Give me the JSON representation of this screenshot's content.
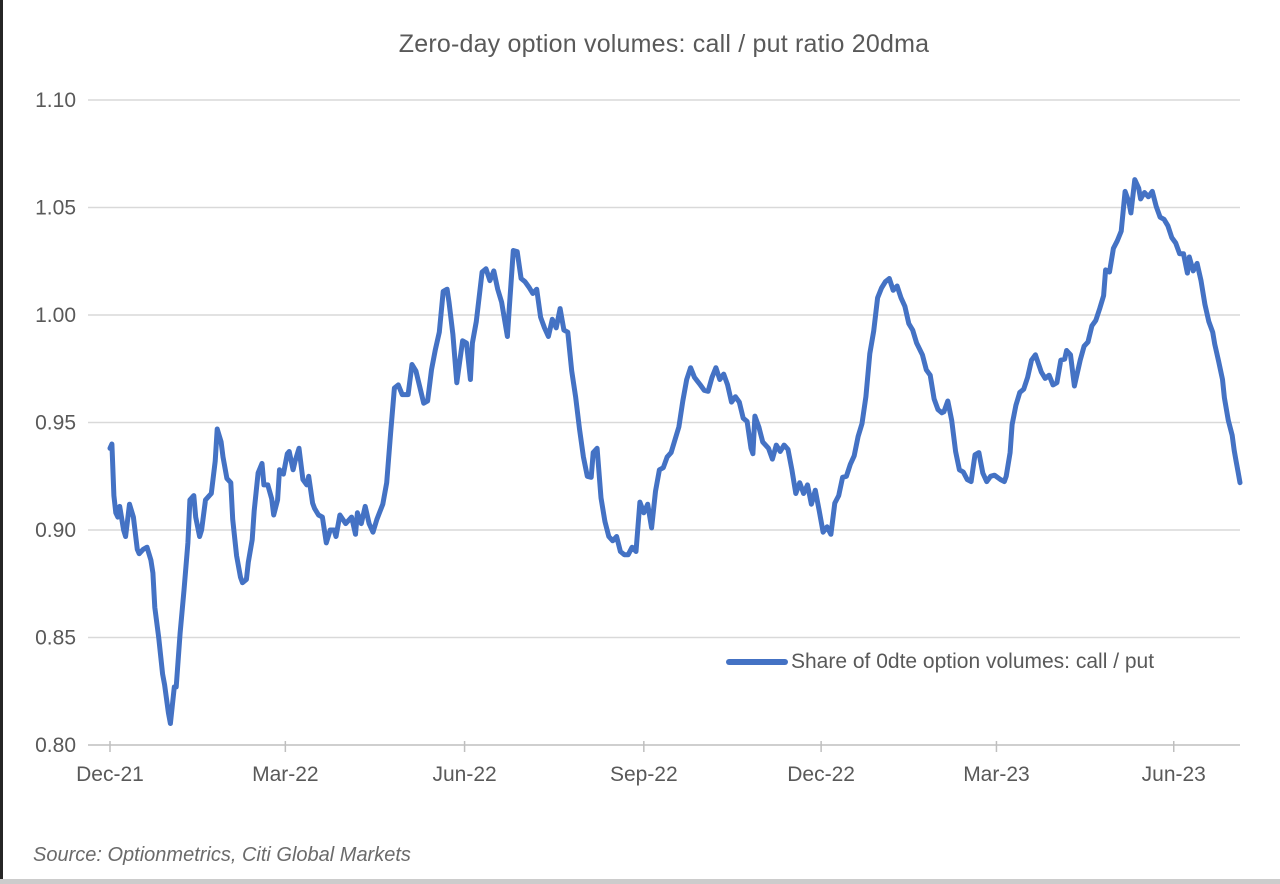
{
  "page": {
    "source_note": "Source: Optionmetrics, Citi Global Markets"
  },
  "chart_data": {
    "type": "line",
    "title": "Zero-day option volumes: call / put ratio 20dma",
    "xlabel": "",
    "ylabel": "",
    "ylim": [
      0.8,
      1.1
    ],
    "y_tick_step": 0.05,
    "y_tick_format_decimals": 2,
    "grid": "horizontal-only",
    "legend_position": "inside-bottom-right",
    "x_unit": "days since 2021-12-01",
    "x_span_days": 580,
    "x_ticks": [
      {
        "label": "Dec-21",
        "day": 0
      },
      {
        "label": "Mar-22",
        "day": 90
      },
      {
        "label": "Jun-22",
        "day": 182
      },
      {
        "label": "Sep-22",
        "day": 274
      },
      {
        "label": "Dec-22",
        "day": 365
      },
      {
        "label": "Mar-23",
        "day": 455
      },
      {
        "label": "Jun-23",
        "day": 546
      }
    ],
    "colors": {
      "line": "#4472C4",
      "grid": "#D9D9D9",
      "axis": "#BFBFBF",
      "text": "#595959"
    },
    "series": [
      {
        "name": "Share of 0dte option volumes: call / put",
        "color": "#4472C4",
        "points": [
          [
            0,
            0.938
          ],
          [
            1,
            0.94
          ],
          [
            2,
            0.916
          ],
          [
            3,
            0.908
          ],
          [
            4,
            0.906
          ],
          [
            5,
            0.911
          ],
          [
            7,
            0.9
          ],
          [
            8,
            0.897
          ],
          [
            10,
            0.912
          ],
          [
            12,
            0.906
          ],
          [
            14,
            0.891
          ],
          [
            15,
            0.889
          ],
          [
            17,
            0.891
          ],
          [
            19,
            0.892
          ],
          [
            21,
            0.886
          ],
          [
            22,
            0.88
          ],
          [
            23,
            0.864
          ],
          [
            25,
            0.85
          ],
          [
            27,
            0.833
          ],
          [
            28,
            0.828
          ],
          [
            30,
            0.815
          ],
          [
            31,
            0.81
          ],
          [
            33,
            0.827
          ],
          [
            34,
            0.827
          ],
          [
            36,
            0.852
          ],
          [
            38,
            0.872
          ],
          [
            40,
            0.894
          ],
          [
            41,
            0.914
          ],
          [
            43,
            0.916
          ],
          [
            44,
            0.906
          ],
          [
            46,
            0.897
          ],
          [
            47,
            0.9
          ],
          [
            49,
            0.914
          ],
          [
            51,
            0.916
          ],
          [
            52,
            0.917
          ],
          [
            54,
            0.932
          ],
          [
            55,
            0.947
          ],
          [
            57,
            0.941
          ],
          [
            58,
            0.934
          ],
          [
            60,
            0.924
          ],
          [
            62,
            0.922
          ],
          [
            63,
            0.905
          ],
          [
            65,
            0.888
          ],
          [
            67,
            0.878
          ],
          [
            68,
            0.8755
          ],
          [
            70,
            0.877
          ],
          [
            71,
            0.885
          ],
          [
            73,
            0.8955
          ],
          [
            74,
            0.909
          ],
          [
            76,
            0.9265
          ],
          [
            78,
            0.931
          ],
          [
            79,
            0.921
          ],
          [
            81,
            0.921
          ],
          [
            83,
            0.9145
          ],
          [
            84,
            0.907
          ],
          [
            86,
            0.914
          ],
          [
            87,
            0.928
          ],
          [
            89,
            0.926
          ],
          [
            91,
            0.9355
          ],
          [
            92,
            0.9365
          ],
          [
            94,
            0.928
          ],
          [
            95,
            0.932
          ],
          [
            97,
            0.938
          ],
          [
            99,
            0.9235
          ],
          [
            101,
            0.921
          ],
          [
            102,
            0.925
          ],
          [
            104,
            0.9125
          ],
          [
            105,
            0.91
          ],
          [
            107,
            0.907
          ],
          [
            109,
            0.906
          ],
          [
            111,
            0.894
          ],
          [
            113,
            0.9
          ],
          [
            115,
            0.9
          ],
          [
            116,
            0.897
          ],
          [
            118,
            0.907
          ],
          [
            121,
            0.903
          ],
          [
            123,
            0.905
          ],
          [
            124,
            0.906
          ],
          [
            126,
            0.898
          ],
          [
            127,
            0.908
          ],
          [
            129,
            0.903
          ],
          [
            131,
            0.911
          ],
          [
            133,
            0.903
          ],
          [
            135,
            0.899
          ],
          [
            137,
            0.905
          ],
          [
            140,
            0.912
          ],
          [
            142,
            0.922
          ],
          [
            144,
            0.945
          ],
          [
            146,
            0.966
          ],
          [
            148,
            0.9675
          ],
          [
            150,
            0.963
          ],
          [
            153,
            0.963
          ],
          [
            155,
            0.977
          ],
          [
            157,
            0.974
          ],
          [
            159,
            0.9665
          ],
          [
            161,
            0.959
          ],
          [
            163,
            0.96
          ],
          [
            165,
            0.9745
          ],
          [
            167,
            0.984
          ],
          [
            169,
            0.992
          ],
          [
            171,
            1.011
          ],
          [
            173,
            1.012
          ],
          [
            174,
            1.006
          ],
          [
            176,
            0.991
          ],
          [
            178,
            0.9685
          ],
          [
            179,
            0.975
          ],
          [
            181,
            0.988
          ],
          [
            183,
            0.987
          ],
          [
            185,
            0.97
          ],
          [
            186,
            0.987
          ],
          [
            188,
            0.997
          ],
          [
            191,
            1.02
          ],
          [
            193,
            1.0215
          ],
          [
            195,
            1.016
          ],
          [
            197,
            1.0205
          ],
          [
            199,
            1.012
          ],
          [
            201,
            1.006
          ],
          [
            204,
            0.99
          ],
          [
            205,
            1.004
          ],
          [
            207,
            1.03
          ],
          [
            209,
            1.0295
          ],
          [
            211,
            1.017
          ],
          [
            213,
            1.0155
          ],
          [
            215,
            1.013
          ],
          [
            217,
            1.01
          ],
          [
            219,
            1.012
          ],
          [
            221,
            0.999
          ],
          [
            223,
            0.994
          ],
          [
            225,
            0.99
          ],
          [
            227,
            0.998
          ],
          [
            229,
            0.994
          ],
          [
            231,
            1.003
          ],
          [
            233,
            0.993
          ],
          [
            235,
            0.992
          ],
          [
            237,
            0.974
          ],
          [
            239,
            0.962
          ],
          [
            241,
            0.947
          ],
          [
            243,
            0.934
          ],
          [
            245,
            0.925
          ],
          [
            247,
            0.9245
          ],
          [
            248,
            0.936
          ],
          [
            250,
            0.938
          ],
          [
            252,
            0.915
          ],
          [
            254,
            0.904
          ],
          [
            256,
            0.897
          ],
          [
            258,
            0.895
          ],
          [
            260,
            0.897
          ],
          [
            262,
            0.89
          ],
          [
            264,
            0.8885
          ],
          [
            266,
            0.8885
          ],
          [
            268,
            0.892
          ],
          [
            270,
            0.89
          ],
          [
            272,
            0.913
          ],
          [
            274,
            0.908
          ],
          [
            276,
            0.912
          ],
          [
            278,
            0.901
          ],
          [
            280,
            0.918
          ],
          [
            282,
            0.928
          ],
          [
            284,
            0.929
          ],
          [
            286,
            0.934
          ],
          [
            288,
            0.936
          ],
          [
            290,
            0.942
          ],
          [
            292,
            0.948
          ],
          [
            294,
            0.96
          ],
          [
            296,
            0.97
          ],
          [
            298,
            0.9755
          ],
          [
            300,
            0.971
          ],
          [
            303,
            0.9675
          ],
          [
            305,
            0.965
          ],
          [
            307,
            0.9645
          ],
          [
            309,
            0.971
          ],
          [
            311,
            0.9755
          ],
          [
            313,
            0.97
          ],
          [
            315,
            0.9725
          ],
          [
            317,
            0.9675
          ],
          [
            319,
            0.9595
          ],
          [
            321,
            0.962
          ],
          [
            323,
            0.9595
          ],
          [
            325,
            0.952
          ],
          [
            327,
            0.9505
          ],
          [
            329,
            0.938
          ],
          [
            330,
            0.9355
          ],
          [
            331,
            0.953
          ],
          [
            333,
            0.948
          ],
          [
            335,
            0.941
          ],
          [
            338,
            0.938
          ],
          [
            340,
            0.933
          ],
          [
            342,
            0.9395
          ],
          [
            344,
            0.9365
          ],
          [
            346,
            0.9395
          ],
          [
            348,
            0.9375
          ],
          [
            350,
            0.928
          ],
          [
            352,
            0.917
          ],
          [
            354,
            0.922
          ],
          [
            356,
            0.917
          ],
          [
            358,
            0.921
          ],
          [
            360,
            0.912
          ],
          [
            362,
            0.9185
          ],
          [
            364,
            0.909
          ],
          [
            366,
            0.899
          ],
          [
            368,
            0.9015
          ],
          [
            370,
            0.898
          ],
          [
            372,
            0.9125
          ],
          [
            374,
            0.916
          ],
          [
            376,
            0.9245
          ],
          [
            378,
            0.925
          ],
          [
            380,
            0.9305
          ],
          [
            382,
            0.9345
          ],
          [
            384,
            0.9435
          ],
          [
            386,
            0.9495
          ],
          [
            388,
            0.962
          ],
          [
            390,
            0.982
          ],
          [
            392,
            0.9925
          ],
          [
            394,
            1.008
          ],
          [
            396,
            1.0125
          ],
          [
            398,
            1.0155
          ],
          [
            400,
            1.017
          ],
          [
            402,
            1.0115
          ],
          [
            404,
            1.0135
          ],
          [
            406,
            1.008
          ],
          [
            408,
            1.004
          ],
          [
            410,
            0.996
          ],
          [
            412,
            0.993
          ],
          [
            414,
            0.987
          ],
          [
            417,
            0.9815
          ],
          [
            419,
            0.9745
          ],
          [
            421,
            0.972
          ],
          [
            423,
            0.961
          ],
          [
            425,
            0.956
          ],
          [
            427,
            0.9545
          ],
          [
            428,
            0.955
          ],
          [
            430,
            0.96
          ],
          [
            432,
            0.951
          ],
          [
            434,
            0.9365
          ],
          [
            436,
            0.928
          ],
          [
            438,
            0.927
          ],
          [
            440,
            0.9235
          ],
          [
            442,
            0.9225
          ],
          [
            444,
            0.935
          ],
          [
            446,
            0.936
          ],
          [
            448,
            0.9265
          ],
          [
            450,
            0.9225
          ],
          [
            452,
            0.925
          ],
          [
            454,
            0.9255
          ],
          [
            457,
            0.9235
          ],
          [
            459,
            0.9225
          ],
          [
            460,
            0.925
          ],
          [
            462,
            0.936
          ],
          [
            463,
            0.949
          ],
          [
            465,
            0.958
          ],
          [
            467,
            0.964
          ],
          [
            469,
            0.9655
          ],
          [
            471,
            0.971
          ],
          [
            473,
            0.979
          ],
          [
            475,
            0.9815
          ],
          [
            478,
            0.9735
          ],
          [
            480,
            0.9705
          ],
          [
            482,
            0.972
          ],
          [
            484,
            0.9675
          ],
          [
            486,
            0.9685
          ],
          [
            488,
            0.979
          ],
          [
            490,
            0.9795
          ],
          [
            491,
            0.9835
          ],
          [
            493,
            0.9815
          ],
          [
            495,
            0.967
          ],
          [
            498,
            0.979
          ],
          [
            500,
            0.9855
          ],
          [
            502,
            0.9875
          ],
          [
            504,
            0.995
          ],
          [
            506,
            0.9975
          ],
          [
            508,
            1.003
          ],
          [
            510,
            1.009
          ],
          [
            511,
            1.021
          ],
          [
            513,
            1.02
          ],
          [
            515,
            1.031
          ],
          [
            517,
            1.0345
          ],
          [
            519,
            1.039
          ],
          [
            521,
            1.0575
          ],
          [
            523,
            1.0525
          ],
          [
            524,
            1.0475
          ],
          [
            526,
            1.063
          ],
          [
            528,
            1.059
          ],
          [
            529,
            1.054
          ],
          [
            531,
            1.057
          ],
          [
            533,
            1.055
          ],
          [
            535,
            1.0575
          ],
          [
            537,
            1.0505
          ],
          [
            539,
            1.0455
          ],
          [
            541,
            1.0445
          ],
          [
            543,
            1.0415
          ],
          [
            545,
            1.036
          ],
          [
            547,
            1.0335
          ],
          [
            549,
            1.0285
          ],
          [
            551,
            1.0285
          ],
          [
            553,
            1.0195
          ],
          [
            554,
            1.027
          ],
          [
            556,
            1.0205
          ],
          [
            558,
            1.024
          ],
          [
            560,
            1.016
          ],
          [
            562,
            1.005
          ],
          [
            564,
            0.997
          ],
          [
            566,
            0.992
          ],
          [
            567,
            0.9865
          ],
          [
            569,
            0.9785
          ],
          [
            571,
            0.97
          ],
          [
            572,
            0.9615
          ],
          [
            574,
            0.951
          ],
          [
            576,
            0.944
          ],
          [
            577,
            0.937
          ],
          [
            578,
            0.932
          ],
          [
            579,
            0.927
          ],
          [
            580,
            0.922
          ]
        ]
      }
    ]
  }
}
